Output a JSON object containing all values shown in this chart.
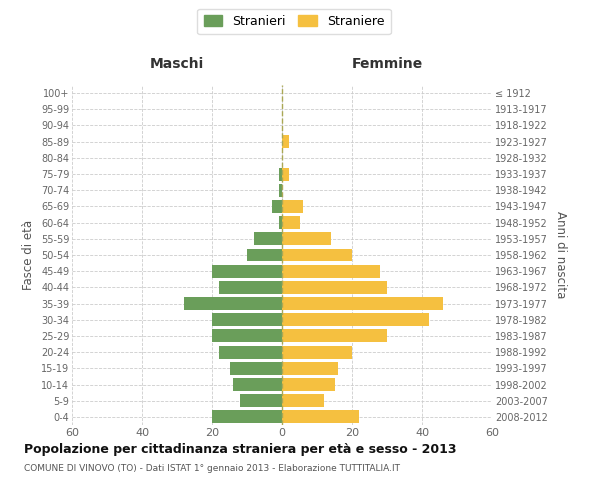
{
  "age_groups": [
    "0-4",
    "5-9",
    "10-14",
    "15-19",
    "20-24",
    "25-29",
    "30-34",
    "35-39",
    "40-44",
    "45-49",
    "50-54",
    "55-59",
    "60-64",
    "65-69",
    "70-74",
    "75-79",
    "80-84",
    "85-89",
    "90-94",
    "95-99",
    "100+"
  ],
  "birth_years": [
    "2008-2012",
    "2003-2007",
    "1998-2002",
    "1993-1997",
    "1988-1992",
    "1983-1987",
    "1978-1982",
    "1973-1977",
    "1968-1972",
    "1963-1967",
    "1958-1962",
    "1953-1957",
    "1948-1952",
    "1943-1947",
    "1938-1942",
    "1933-1937",
    "1928-1932",
    "1923-1927",
    "1918-1922",
    "1913-1917",
    "≤ 1912"
  ],
  "males": [
    20,
    12,
    14,
    15,
    18,
    20,
    20,
    28,
    18,
    20,
    10,
    8,
    1,
    3,
    1,
    1,
    0,
    0,
    0,
    0,
    0
  ],
  "females": [
    22,
    12,
    15,
    16,
    20,
    30,
    42,
    46,
    30,
    28,
    20,
    14,
    5,
    6,
    0,
    2,
    0,
    2,
    0,
    0,
    0
  ],
  "male_color": "#6a9e5a",
  "female_color": "#f5c040",
  "background_color": "#ffffff",
  "grid_color": "#cccccc",
  "title": "Popolazione per cittadinanza straniera per età e sesso - 2013",
  "subtitle": "COMUNE DI VINOVO (TO) - Dati ISTAT 1° gennaio 2013 - Elaborazione TUTTITALIA.IT",
  "ylabel_left": "Fasce di età",
  "ylabel_right": "Anni di nascita",
  "label_maschi": "Maschi",
  "label_femmine": "Femmine",
  "legend_male": "Stranieri",
  "legend_female": "Straniere",
  "xlim": 60,
  "figsize": [
    6.0,
    5.0
  ],
  "dpi": 100
}
